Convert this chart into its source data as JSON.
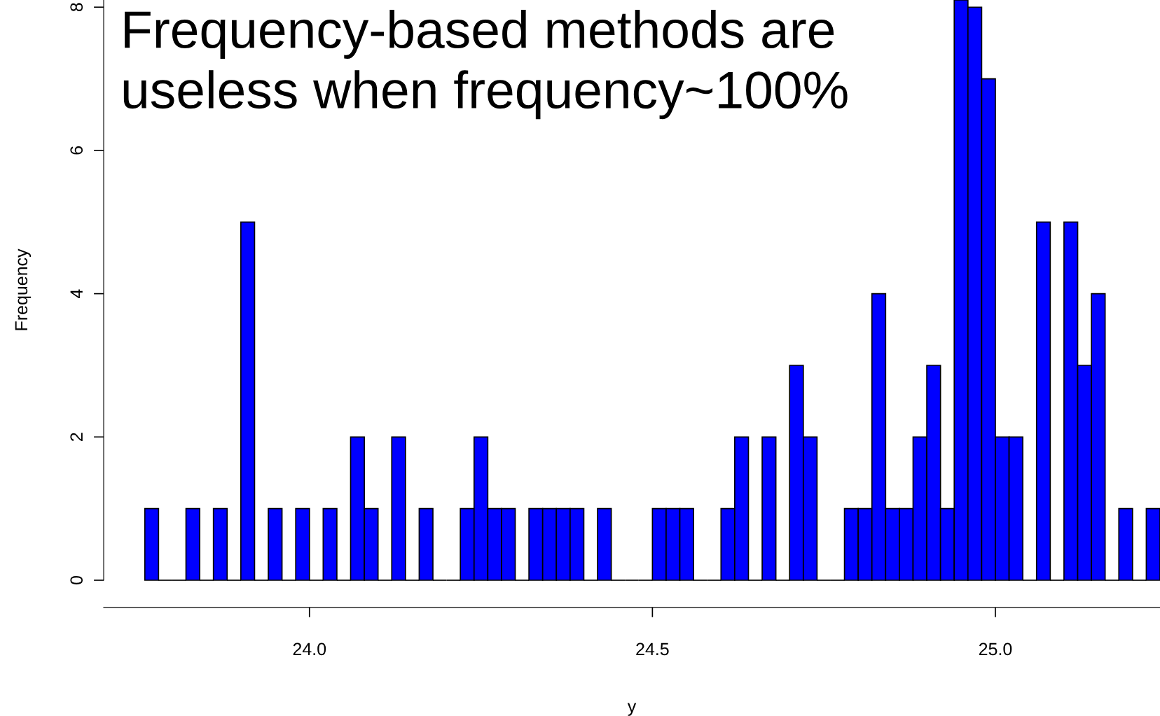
{
  "chart_data": {
    "type": "histogram",
    "xlabel": "y",
    "ylabel": "Frequency",
    "annotations": [
      "Frequency-based methods are\nuseless when frequency~100%"
    ],
    "bins": [
      23.76,
      23.78,
      23.8,
      23.82,
      23.84,
      23.86,
      23.88,
      23.9,
      23.92,
      23.94,
      23.96,
      23.98,
      24.0,
      24.02,
      24.04,
      24.06,
      24.08,
      24.1,
      24.12,
      24.14,
      24.16,
      24.18,
      24.2,
      24.22,
      24.24,
      24.26,
      24.28,
      24.3,
      24.32,
      24.34,
      24.36,
      24.38,
      24.4,
      24.42,
      24.44,
      24.46,
      24.48,
      24.5,
      24.52,
      24.54,
      24.56,
      24.58,
      24.6,
      24.62,
      24.64,
      24.66,
      24.68,
      24.7,
      24.72,
      24.74,
      24.76,
      24.78,
      24.8,
      24.82,
      24.84,
      24.86,
      24.88,
      24.9,
      24.92,
      24.94,
      24.96,
      24.98,
      25.0,
      25.02,
      25.04,
      25.06,
      25.08,
      25.1,
      25.12,
      25.14,
      25.16,
      25.18,
      25.2,
      25.22,
      25.24
    ],
    "values": [
      1,
      0,
      0,
      1,
      0,
      1,
      0,
      5,
      0,
      1,
      0,
      1,
      0,
      1,
      0,
      2,
      1,
      0,
      2,
      0,
      1,
      0,
      0,
      1,
      2,
      1,
      1,
      0,
      1,
      1,
      1,
      1,
      0,
      1,
      0,
      0,
      0,
      1,
      1,
      1,
      0,
      0,
      1,
      2,
      0,
      2,
      0,
      3,
      2,
      0,
      0,
      1,
      1,
      4,
      1,
      1,
      2,
      3,
      1,
      8.1,
      8,
      7,
      2,
      2,
      0,
      5,
      0,
      5,
      3,
      4,
      0,
      1,
      0,
      1
    ],
    "color": "#0000ff",
    "xlim": [
      23.7,
      25.24
    ],
    "ylim": [
      0,
      8.1
    ],
    "xticks": [
      {
        "value": 24.0,
        "label": "24.0"
      },
      {
        "value": 24.5,
        "label": "24.5"
      },
      {
        "value": 25.0,
        "label": "25.0"
      }
    ],
    "yticks": [
      0,
      2,
      4,
      6,
      8
    ],
    "grid": false
  }
}
